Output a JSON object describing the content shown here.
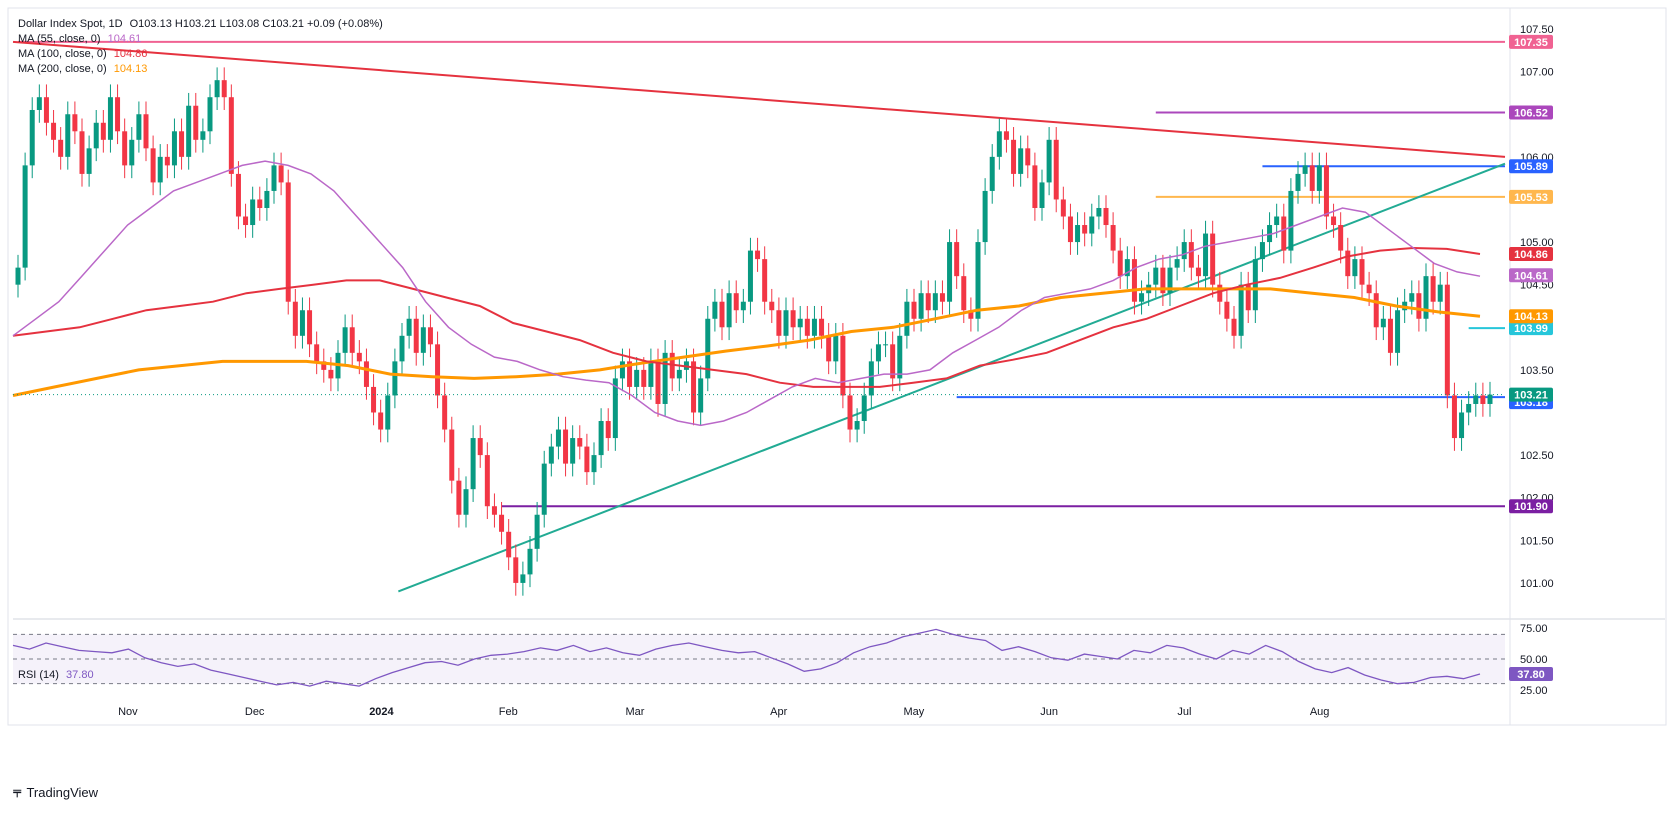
{
  "header": {
    "symbol": "Dollar Index Spot, 1D",
    "ohlc": "O103.13  H103.21  L103.08  C103.21  +0.09 (+0.08%)",
    "ma55_label": "MA (55, close, 0)",
    "ma55_value": "104.61",
    "ma100_label": "MA (100, close, 0)",
    "ma100_value": "104.86",
    "ma200_label": "MA (200, close, 0)",
    "ma200_value": "104.13",
    "rsi_label": "RSI (14)",
    "rsi_value": "37.80"
  },
  "brand": {
    "name": "TradingView"
  },
  "colors": {
    "up": "#089981",
    "down": "#f23645",
    "ma55": "#ba68c8",
    "ma100": "#e5323f",
    "ma200": "#ff9800",
    "rsi": "#7e57c2",
    "pink": "#f06292",
    "purple": "#ab47bc",
    "blue": "#2962ff",
    "gold": "#ffb74d",
    "teal": "#26c6da",
    "green": "#22ab94",
    "violet": "#7b1fa2"
  },
  "chart_data": {
    "type": "candlestick",
    "price_axis": {
      "ticks": [
        "107.50",
        "107.00",
        "106.00",
        "105.00",
        "104.50",
        "103.50",
        "102.50",
        "102.00",
        "101.50",
        "101.00"
      ],
      "range": [
        100.6,
        107.7
      ]
    },
    "time_axis": {
      "labels": [
        "Nov",
        "Dec",
        "2024",
        "Feb",
        "Mar",
        "Apr",
        "May",
        "Jun",
        "Jul",
        "Aug"
      ]
    },
    "horizontal_levels": [
      {
        "value": 107.35,
        "label": "107.35",
        "color": "pink",
        "from": "start"
      },
      {
        "value": 106.52,
        "label": "106.52",
        "color": "purple",
        "from": "Apr"
      },
      {
        "value": 105.89,
        "label": "105.89",
        "color": "blue",
        "from": "May"
      },
      {
        "value": 105.53,
        "label": "105.53",
        "color": "gold",
        "from": "Apr"
      },
      {
        "value": 103.99,
        "label": "103.99",
        "color": "teal",
        "from": "Jun"
      },
      {
        "value": 103.18,
        "label": "103.18",
        "color": "blue",
        "from": "Mar"
      },
      {
        "value": 101.9,
        "label": "101.90",
        "color": "violet",
        "from": "Dec"
      }
    ],
    "price_tags": [
      {
        "value": 104.86,
        "label": "104.86",
        "color": "ma100"
      },
      {
        "value": 104.61,
        "label": "104.61",
        "color": "ma55"
      },
      {
        "value": 104.13,
        "label": "104.13",
        "color": "ma200"
      },
      {
        "value": 103.21,
        "label": "103.21",
        "color": "up"
      }
    ],
    "trendlines": [
      {
        "name": "descending resistance",
        "from": [
          0,
          107.35
        ],
        "to": [
          210,
          106.0
        ],
        "color": "ma100"
      },
      {
        "name": "ascending support",
        "from": [
          54,
          100.9
        ],
        "to": [
          210,
          105.92
        ],
        "color": "green"
      }
    ],
    "close": [
      104.7,
      105.9,
      106.55,
      106.7,
      106.4,
      106.2,
      106.0,
      106.5,
      106.3,
      105.8,
      106.1,
      106.4,
      106.2,
      106.7,
      106.3,
      105.9,
      106.2,
      106.5,
      106.1,
      105.7,
      106.0,
      105.9,
      106.3,
      106.0,
      106.6,
      106.2,
      106.3,
      106.7,
      106.9,
      106.7,
      105.8,
      105.3,
      105.2,
      105.5,
      105.4,
      105.6,
      105.9,
      105.7,
      104.3,
      103.9,
      104.2,
      103.8,
      103.6,
      103.5,
      103.4,
      103.7,
      104.0,
      103.7,
      103.6,
      103.3,
      103.0,
      102.8,
      103.2,
      103.6,
      103.9,
      104.1,
      103.7,
      104.0,
      103.8,
      103.2,
      102.8,
      102.2,
      101.8,
      102.1,
      102.7,
      102.5,
      101.9,
      101.8,
      101.6,
      101.3,
      101.0,
      101.1,
      101.4,
      101.8,
      102.4,
      102.6,
      102.8,
      102.4,
      102.7,
      102.6,
      102.3,
      102.5,
      102.9,
      102.7,
      103.4,
      103.6,
      103.3,
      103.5,
      103.3,
      103.6,
      103.1,
      103.7,
      103.4,
      103.5,
      103.6,
      103.0,
      103.4,
      104.1,
      104.3,
      104.0,
      104.4,
      104.2,
      104.3,
      104.9,
      104.8,
      104.3,
      104.2,
      103.9,
      104.2,
      104.0,
      104.1,
      103.9,
      104.1,
      103.9,
      103.6,
      103.9,
      103.2,
      102.8,
      102.9,
      103.2,
      103.6,
      103.8,
      103.8,
      103.4,
      103.9,
      104.3,
      104.1,
      104.4,
      104.2,
      104.4,
      104.3,
      105.0,
      104.6,
      104.2,
      104.1,
      105.0,
      105.6,
      106.0,
      106.3,
      106.2,
      105.8,
      106.1,
      105.9,
      105.4,
      105.7,
      106.2,
      105.5,
      105.3,
      105.0,
      105.2,
      105.1,
      105.3,
      105.4,
      105.2,
      104.9,
      104.6,
      104.8,
      104.3,
      104.4,
      104.5,
      104.7,
      104.4,
      104.7,
      104.8,
      105.0,
      104.7,
      104.6,
      105.1,
      104.5,
      104.3,
      104.1,
      103.9,
      104.5,
      104.2,
      104.8,
      105.0,
      105.2,
      105.3,
      104.9,
      105.6,
      105.8,
      105.9,
      105.6,
      105.9,
      105.3,
      105.2,
      104.9,
      104.6,
      104.8,
      104.5,
      104.4,
      104.0,
      104.1,
      103.7,
      104.2,
      104.3,
      104.4,
      104.1,
      104.6,
      104.3,
      104.5,
      103.2,
      102.7,
      103.0,
      103.1,
      103.2,
      103.1,
      103.21
    ],
    "ma55": [
      103.9,
      104.1,
      104.3,
      104.6,
      104.9,
      105.2,
      105.4,
      105.6,
      105.7,
      105.8,
      105.9,
      105.95,
      105.9,
      105.8,
      105.6,
      105.3,
      105.0,
      104.7,
      104.3,
      104.0,
      103.8,
      103.65,
      103.6,
      103.5,
      103.42,
      103.38,
      103.35,
      103.2,
      103.0,
      102.9,
      102.85,
      102.9,
      103.0,
      103.15,
      103.3,
      103.4,
      103.35,
      103.4,
      103.45,
      103.45,
      103.5,
      103.7,
      103.85,
      104.0,
      104.2,
      104.35,
      104.4,
      104.45,
      104.55,
      104.7,
      104.8,
      104.85,
      104.95,
      105.0,
      105.05,
      105.1,
      105.2,
      105.3,
      105.4,
      105.35,
      105.15,
      104.95,
      104.75,
      104.65,
      104.6
    ],
    "ma100": [
      103.9,
      103.95,
      104.0,
      104.1,
      104.2,
      104.25,
      104.3,
      104.4,
      104.45,
      104.5,
      104.55,
      104.55,
      104.45,
      104.35,
      104.25,
      104.05,
      103.95,
      103.85,
      103.7,
      103.6,
      103.55,
      103.5,
      103.45,
      103.35,
      103.3,
      103.3,
      103.3,
      103.35,
      103.4,
      103.55,
      103.62,
      103.7,
      103.85,
      104.0,
      104.1,
      104.25,
      104.4,
      104.5,
      104.58,
      104.7,
      104.83,
      104.9,
      104.93,
      104.92,
      104.86
    ],
    "ma200": [
      103.2,
      103.3,
      103.4,
      103.5,
      103.55,
      103.6,
      103.6,
      103.6,
      103.55,
      103.45,
      103.42,
      103.4,
      103.42,
      103.45,
      103.5,
      103.58,
      103.65,
      103.72,
      103.78,
      103.85,
      103.95,
      104.0,
      104.1,
      104.2,
      104.25,
      104.35,
      104.4,
      104.45,
      104.45,
      104.45,
      104.45,
      104.4,
      104.35,
      104.25,
      104.18,
      104.13
    ],
    "rsi": [
      61,
      58,
      63,
      60,
      57,
      56,
      55,
      58,
      51,
      47,
      44,
      46,
      41,
      38,
      35,
      32,
      29,
      31,
      28,
      32,
      30,
      28,
      34,
      39,
      43,
      47,
      48,
      45,
      50,
      53,
      54,
      56,
      59,
      57,
      61,
      56,
      59,
      55,
      53,
      58,
      61,
      63,
      60,
      57,
      55,
      56,
      51,
      46,
      40,
      42,
      47,
      55,
      60,
      63,
      68,
      71,
      74,
      70,
      67,
      65,
      57,
      60,
      56,
      51,
      49,
      54,
      52,
      50,
      57,
      55,
      61,
      59,
      54,
      50,
      57,
      54,
      61,
      56,
      48,
      42,
      39,
      43,
      37,
      33,
      30,
      31,
      35,
      36,
      34,
      37.8
    ],
    "rsi_axis": {
      "ticks": [
        "75.00",
        "50.00",
        "25.00"
      ],
      "levels": [
        70,
        50,
        30
      ]
    }
  }
}
